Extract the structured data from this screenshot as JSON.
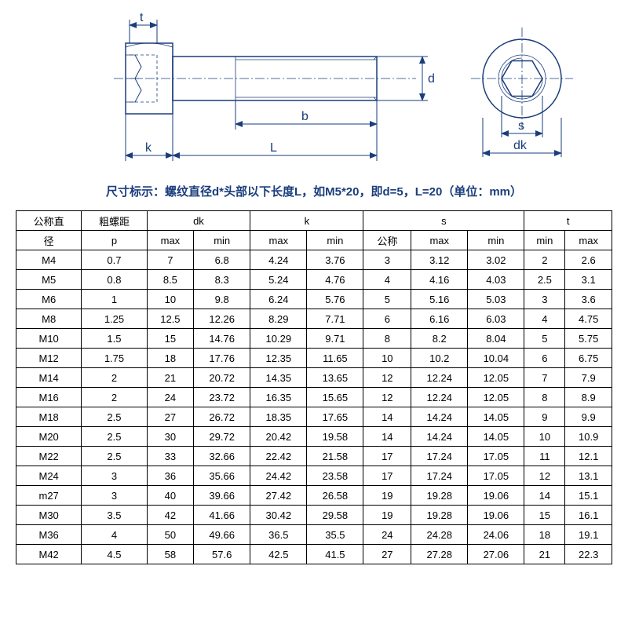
{
  "diagram": {
    "labels": {
      "t": "t",
      "d": "d",
      "b": "b",
      "k": "k",
      "L": "L",
      "s": "s",
      "dk": "dk"
    },
    "color": "#1a3d7c"
  },
  "caption": "尺寸标示：螺纹直径d*头部以下长度L，如M5*20，即d=5，L=20（单位：mm）",
  "table": {
    "header_row1": [
      "公称直",
      "粗螺距",
      "dk",
      "k",
      "s",
      "t"
    ],
    "header_row2": [
      "径",
      "p",
      "max",
      "min",
      "max",
      "min",
      "公称",
      "max",
      "min",
      "min",
      "max"
    ],
    "colspans_row1": [
      1,
      1,
      2,
      2,
      3,
      2
    ],
    "rows": [
      [
        "M4",
        "0.7",
        "7",
        "6.8",
        "4.24",
        "3.76",
        "3",
        "3.12",
        "3.02",
        "2",
        "2.6"
      ],
      [
        "M5",
        "0.8",
        "8.5",
        "8.3",
        "5.24",
        "4.76",
        "4",
        "4.16",
        "4.03",
        "2.5",
        "3.1"
      ],
      [
        "M6",
        "1",
        "10",
        "9.8",
        "6.24",
        "5.76",
        "5",
        "5.16",
        "5.03",
        "3",
        "3.6"
      ],
      [
        "M8",
        "1.25",
        "12.5",
        "12.26",
        "8.29",
        "7.71",
        "6",
        "6.16",
        "6.03",
        "4",
        "4.75"
      ],
      [
        "M10",
        "1.5",
        "15",
        "14.76",
        "10.29",
        "9.71",
        "8",
        "8.2",
        "8.04",
        "5",
        "5.75"
      ],
      [
        "M12",
        "1.75",
        "18",
        "17.76",
        "12.35",
        "11.65",
        "10",
        "10.2",
        "10.04",
        "6",
        "6.75"
      ],
      [
        "M14",
        "2",
        "21",
        "20.72",
        "14.35",
        "13.65",
        "12",
        "12.24",
        "12.05",
        "7",
        "7.9"
      ],
      [
        "M16",
        "2",
        "24",
        "23.72",
        "16.35",
        "15.65",
        "12",
        "12.24",
        "12.05",
        "8",
        "8.9"
      ],
      [
        "M18",
        "2.5",
        "27",
        "26.72",
        "18.35",
        "17.65",
        "14",
        "14.24",
        "14.05",
        "9",
        "9.9"
      ],
      [
        "M20",
        "2.5",
        "30",
        "29.72",
        "20.42",
        "19.58",
        "14",
        "14.24",
        "14.05",
        "10",
        "10.9"
      ],
      [
        "M22",
        "2.5",
        "33",
        "32.66",
        "22.42",
        "21.58",
        "17",
        "17.24",
        "17.05",
        "11",
        "12.1"
      ],
      [
        "M24",
        "3",
        "36",
        "35.66",
        "24.42",
        "23.58",
        "17",
        "17.24",
        "17.05",
        "12",
        "13.1"
      ],
      [
        "m27",
        "3",
        "40",
        "39.66",
        "27.42",
        "26.58",
        "19",
        "19.28",
        "19.06",
        "14",
        "15.1"
      ],
      [
        "M30",
        "3.5",
        "42",
        "41.66",
        "30.42",
        "29.58",
        "19",
        "19.28",
        "19.06",
        "15",
        "16.1"
      ],
      [
        "M36",
        "4",
        "50",
        "49.66",
        "36.5",
        "35.5",
        "24",
        "24.28",
        "24.06",
        "18",
        "19.1"
      ],
      [
        "M42",
        "4.5",
        "58",
        "57.6",
        "42.5",
        "41.5",
        "27",
        "27.28",
        "27.06",
        "21",
        "22.3"
      ]
    ],
    "col_widths_pct": [
      8,
      8,
      8,
      8,
      8,
      8,
      8,
      8,
      8,
      8,
      8
    ]
  },
  "style": {
    "text_color": "#000000",
    "border_color": "#000000",
    "caption_color": "#1a3d7c",
    "caption_fontsize": 15,
    "table_fontsize": 13,
    "background": "#ffffff"
  }
}
